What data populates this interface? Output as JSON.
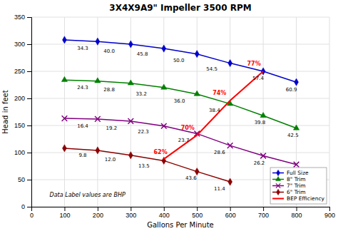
{
  "chart_data": {
    "type": "line",
    "title": "3X4X9A9\" Impeller 3500 RPM",
    "xlabel": "Gallons Per Minute",
    "ylabel": "Head in feet",
    "xlim": [
      0,
      900
    ],
    "ylim": [
      0,
      350
    ],
    "xticks": [
      0,
      100,
      200,
      300,
      400,
      500,
      600,
      700,
      800,
      900
    ],
    "yticks": [
      0,
      50,
      100,
      150,
      200,
      250,
      300,
      350
    ],
    "grid": true,
    "legend": "lower right",
    "annotations": [
      {
        "text": "Data Label values are BHP",
        "x": 55,
        "y": 18
      }
    ],
    "series": [
      {
        "name": "Full Size",
        "color": "#0000CC",
        "marker": "diamond",
        "x": [
          100,
          200,
          300,
          400,
          500,
          600,
          700,
          800
        ],
        "values": [
          308,
          305,
          300,
          292,
          282,
          265,
          250,
          230
        ],
        "annotations": [
          {
            "text": "34.3",
            "x": 155,
            "y": 297
          },
          {
            "text": "40.0",
            "x": 235,
            "y": 292
          },
          {
            "text": "45.8",
            "x": 335,
            "y": 286
          },
          {
            "text": "50.0",
            "x": 445,
            "y": 275
          },
          {
            "text": "54.5",
            "x": 545,
            "y": 259
          },
          {
            "text": "57.4",
            "x": 685,
            "y": 242
          },
          {
            "text": "60.9",
            "x": 785,
            "y": 220
          }
        ]
      },
      {
        "name": "8\" Trim",
        "color": "#008000",
        "marker": "triangle",
        "x": [
          100,
          200,
          300,
          400,
          500,
          600,
          700,
          800
        ],
        "values": [
          234,
          232,
          228,
          220,
          208,
          190,
          168,
          145
        ],
        "annotations": [
          {
            "text": "24.3",
            "x": 155,
            "y": 225
          },
          {
            "text": "28.8",
            "x": 235,
            "y": 220
          },
          {
            "text": "33.2",
            "x": 332,
            "y": 213
          },
          {
            "text": "36.0",
            "x": 447,
            "y": 200
          },
          {
            "text": "38.4",
            "x": 553,
            "y": 182
          },
          {
            "text": "39.8",
            "x": 690,
            "y": 160
          },
          {
            "text": "42.5",
            "x": 790,
            "y": 136
          }
        ]
      },
      {
        "name": "7\" Trim",
        "color": "#800080",
        "marker": "x",
        "x": [
          100,
          200,
          300,
          400,
          500,
          600,
          700,
          800
        ],
        "values": [
          163,
          162,
          158,
          149,
          135,
          113,
          94,
          78
        ],
        "annotations": [
          {
            "text": "16.4",
            "x": 155,
            "y": 154
          },
          {
            "text": "19.2",
            "x": 242,
            "y": 150
          },
          {
            "text": "22.3",
            "x": 338,
            "y": 143
          },
          {
            "text": "23.7",
            "x": 460,
            "y": 127
          },
          {
            "text": "28.6",
            "x": 568,
            "y": 105
          },
          {
            "text": "26.2",
            "x": 688,
            "y": 85
          }
        ]
      },
      {
        "name": "6\" Trim",
        "color": "#8B0000",
        "marker": "diamond",
        "x": [
          100,
          200,
          300,
          400,
          500,
          600
        ],
        "values": [
          108,
          104,
          95,
          85,
          65,
          46
        ],
        "annotations": [
          {
            "text": "9.8",
            "x": 155,
            "y": 100
          },
          {
            "text": "12.0",
            "x": 238,
            "y": 92
          },
          {
            "text": "13.5",
            "x": 340,
            "y": 80
          },
          {
            "text": "43.6",
            "x": 482,
            "y": 57
          },
          {
            "text": "11.4",
            "x": 568,
            "y": 38
          }
        ]
      },
      {
        "name": "BEP Efficiency",
        "color": "#FF0000",
        "x": [
          400,
          500,
          600,
          700
        ],
        "values": [
          88,
          132,
          196,
          250
        ],
        "annotations": [
          {
            "text": "62%",
            "x": 390,
            "y": 95
          },
          {
            "text": "70%",
            "x": 472,
            "y": 140
          },
          {
            "text": "74%",
            "x": 568,
            "y": 204
          },
          {
            "text": "77%",
            "x": 672,
            "y": 258
          }
        ]
      }
    ]
  }
}
